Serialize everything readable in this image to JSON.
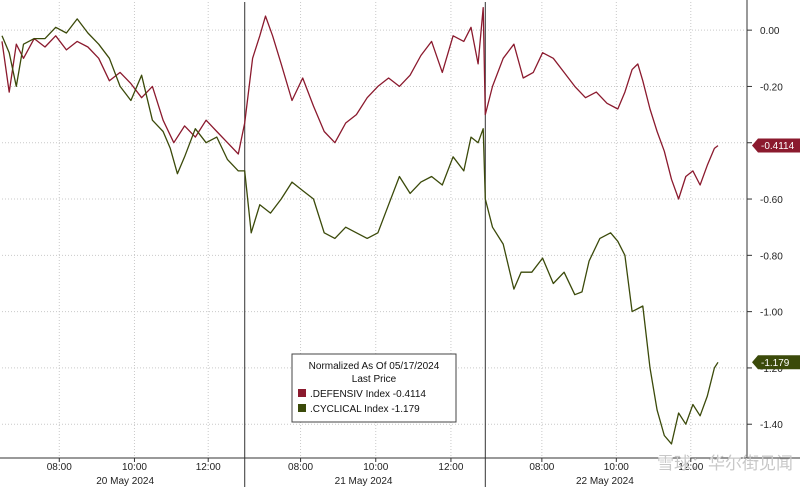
{
  "chart_data": {
    "type": "line",
    "ylim": [
      -1.52,
      0.1
    ],
    "yticks": [
      "0.00",
      "-0.20",
      "-0.40",
      "-0.60",
      "-0.80",
      "-1.00",
      "-1.20",
      "-1.40"
    ],
    "ytick_values": [
      0,
      -0.2,
      -0.4,
      -0.6,
      -0.8,
      -1.0,
      -1.2,
      -1.4
    ],
    "xlim": [
      0,
      1
    ],
    "time_ticks": [
      {
        "label": "08:00",
        "x": 0.08
      },
      {
        "label": "10:00",
        "x": 0.185
      },
      {
        "label": "12:00",
        "x": 0.288
      },
      {
        "label": "08:00",
        "x": 0.417
      },
      {
        "label": "10:00",
        "x": 0.522
      },
      {
        "label": "12:00",
        "x": 0.627
      },
      {
        "label": "08:00",
        "x": 0.754
      },
      {
        "label": "10:00",
        "x": 0.858
      },
      {
        "label": "12:00",
        "x": 0.962
      }
    ],
    "day_labels": [
      {
        "label": "20 May 2024",
        "x": 0.172
      },
      {
        "label": "21 May 2024",
        "x": 0.505
      },
      {
        "label": "22 May 2024",
        "x": 0.842
      }
    ],
    "day_separators": [
      0.339,
      0.675
    ],
    "legend": {
      "title": "Normalized As Of 05/17/2024",
      "subtitle": "Last Price",
      "entries": [
        {
          "text": ".DEFENSIV Index  -0.4114"
        },
        {
          "text": ".CYCLICAL Index  -1.179"
        }
      ]
    },
    "last_labels": [
      "-0.4114",
      "-1.179"
    ],
    "series": [
      {
        "color": "#8b1a2e",
        "points": [
          [
            0.0,
            -0.04
          ],
          [
            0.01,
            -0.22
          ],
          [
            0.02,
            -0.05
          ],
          [
            0.03,
            -0.1
          ],
          [
            0.045,
            -0.03
          ],
          [
            0.06,
            -0.06
          ],
          [
            0.075,
            -0.02
          ],
          [
            0.09,
            -0.07
          ],
          [
            0.105,
            -0.04
          ],
          [
            0.12,
            -0.06
          ],
          [
            0.135,
            -0.1
          ],
          [
            0.15,
            -0.18
          ],
          [
            0.165,
            -0.15
          ],
          [
            0.18,
            -0.19
          ],
          [
            0.195,
            -0.24
          ],
          [
            0.21,
            -0.2
          ],
          [
            0.225,
            -0.32
          ],
          [
            0.24,
            -0.4
          ],
          [
            0.255,
            -0.34
          ],
          [
            0.27,
            -0.38
          ],
          [
            0.285,
            -0.32
          ],
          [
            0.3,
            -0.36
          ],
          [
            0.315,
            -0.4
          ],
          [
            0.33,
            -0.44
          ],
          [
            0.339,
            -0.33
          ],
          [
            0.35,
            -0.1
          ],
          [
            0.36,
            -0.02
          ],
          [
            0.368,
            0.05
          ],
          [
            0.378,
            -0.02
          ],
          [
            0.39,
            -0.12
          ],
          [
            0.405,
            -0.25
          ],
          [
            0.42,
            -0.17
          ],
          [
            0.435,
            -0.27
          ],
          [
            0.45,
            -0.36
          ],
          [
            0.465,
            -0.4
          ],
          [
            0.48,
            -0.33
          ],
          [
            0.495,
            -0.3
          ],
          [
            0.51,
            -0.24
          ],
          [
            0.525,
            -0.2
          ],
          [
            0.54,
            -0.17
          ],
          [
            0.555,
            -0.2
          ],
          [
            0.57,
            -0.16
          ],
          [
            0.585,
            -0.09
          ],
          [
            0.6,
            -0.04
          ],
          [
            0.615,
            -0.15
          ],
          [
            0.63,
            -0.02
          ],
          [
            0.645,
            -0.04
          ],
          [
            0.655,
            0.01
          ],
          [
            0.665,
            -0.12
          ],
          [
            0.672,
            0.08
          ],
          [
            0.675,
            -0.3
          ],
          [
            0.685,
            -0.2
          ],
          [
            0.7,
            -0.1
          ],
          [
            0.715,
            -0.05
          ],
          [
            0.728,
            -0.17
          ],
          [
            0.742,
            -0.15
          ],
          [
            0.755,
            -0.08
          ],
          [
            0.77,
            -0.1
          ],
          [
            0.785,
            -0.15
          ],
          [
            0.8,
            -0.2
          ],
          [
            0.815,
            -0.24
          ],
          [
            0.83,
            -0.22
          ],
          [
            0.845,
            -0.26
          ],
          [
            0.86,
            -0.28
          ],
          [
            0.87,
            -0.22
          ],
          [
            0.88,
            -0.14
          ],
          [
            0.888,
            -0.12
          ],
          [
            0.895,
            -0.18
          ],
          [
            0.905,
            -0.28
          ],
          [
            0.915,
            -0.36
          ],
          [
            0.925,
            -0.43
          ],
          [
            0.935,
            -0.53
          ],
          [
            0.945,
            -0.6
          ],
          [
            0.955,
            -0.52
          ],
          [
            0.965,
            -0.5
          ],
          [
            0.975,
            -0.55
          ],
          [
            0.985,
            -0.48
          ],
          [
            0.995,
            -0.42
          ],
          [
            1.0,
            -0.41
          ]
        ]
      },
      {
        "color": "#3b4a0a",
        "points": [
          [
            0.0,
            -0.02
          ],
          [
            0.01,
            -0.08
          ],
          [
            0.02,
            -0.2
          ],
          [
            0.03,
            -0.05
          ],
          [
            0.045,
            -0.03
          ],
          [
            0.06,
            -0.03
          ],
          [
            0.075,
            0.01
          ],
          [
            0.09,
            -0.01
          ],
          [
            0.105,
            0.04
          ],
          [
            0.12,
            -0.01
          ],
          [
            0.135,
            -0.05
          ],
          [
            0.15,
            -0.1
          ],
          [
            0.165,
            -0.2
          ],
          [
            0.18,
            -0.25
          ],
          [
            0.195,
            -0.16
          ],
          [
            0.21,
            -0.32
          ],
          [
            0.225,
            -0.36
          ],
          [
            0.235,
            -0.42
          ],
          [
            0.245,
            -0.51
          ],
          [
            0.255,
            -0.45
          ],
          [
            0.27,
            -0.35
          ],
          [
            0.285,
            -0.4
          ],
          [
            0.3,
            -0.38
          ],
          [
            0.315,
            -0.46
          ],
          [
            0.33,
            -0.5
          ],
          [
            0.339,
            -0.5
          ],
          [
            0.348,
            -0.72
          ],
          [
            0.36,
            -0.62
          ],
          [
            0.375,
            -0.65
          ],
          [
            0.39,
            -0.6
          ],
          [
            0.405,
            -0.54
          ],
          [
            0.42,
            -0.57
          ],
          [
            0.435,
            -0.6
          ],
          [
            0.45,
            -0.72
          ],
          [
            0.465,
            -0.74
          ],
          [
            0.48,
            -0.7
          ],
          [
            0.495,
            -0.72
          ],
          [
            0.51,
            -0.74
          ],
          [
            0.525,
            -0.72
          ],
          [
            0.54,
            -0.62
          ],
          [
            0.555,
            -0.52
          ],
          [
            0.57,
            -0.58
          ],
          [
            0.585,
            -0.54
          ],
          [
            0.6,
            -0.52
          ],
          [
            0.615,
            -0.55
          ],
          [
            0.63,
            -0.45
          ],
          [
            0.645,
            -0.5
          ],
          [
            0.655,
            -0.38
          ],
          [
            0.665,
            -0.4
          ],
          [
            0.672,
            -0.35
          ],
          [
            0.675,
            -0.6
          ],
          [
            0.685,
            -0.7
          ],
          [
            0.7,
            -0.76
          ],
          [
            0.715,
            -0.92
          ],
          [
            0.725,
            -0.86
          ],
          [
            0.74,
            -0.86
          ],
          [
            0.755,
            -0.81
          ],
          [
            0.77,
            -0.9
          ],
          [
            0.785,
            -0.86
          ],
          [
            0.8,
            -0.94
          ],
          [
            0.81,
            -0.93
          ],
          [
            0.82,
            -0.82
          ],
          [
            0.835,
            -0.74
          ],
          [
            0.85,
            -0.72
          ],
          [
            0.86,
            -0.75
          ],
          [
            0.87,
            -0.8
          ],
          [
            0.88,
            -1.0
          ],
          [
            0.895,
            -0.98
          ],
          [
            0.905,
            -1.2
          ],
          [
            0.915,
            -1.35
          ],
          [
            0.925,
            -1.44
          ],
          [
            0.935,
            -1.47
          ],
          [
            0.945,
            -1.36
          ],
          [
            0.955,
            -1.4
          ],
          [
            0.965,
            -1.33
          ],
          [
            0.975,
            -1.37
          ],
          [
            0.985,
            -1.3
          ],
          [
            0.995,
            -1.2
          ],
          [
            1.0,
            -1.18
          ]
        ]
      }
    ]
  },
  "watermark": "雪球：华尔街见闻"
}
